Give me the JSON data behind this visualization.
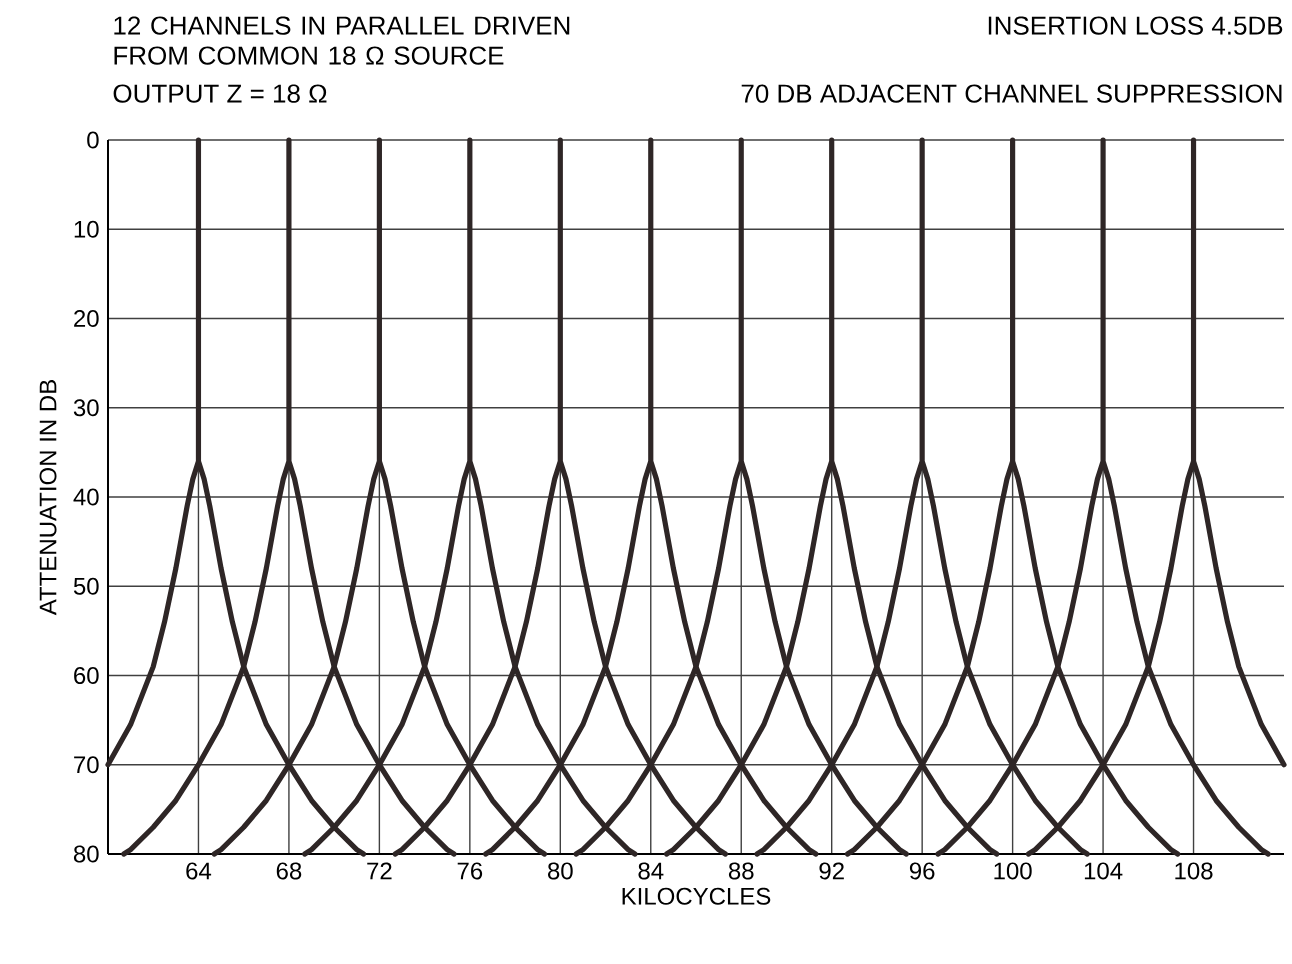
{
  "chart_data": {
    "type": "line",
    "title": "12 CHANNELS IN PARALLEL DRIVEN FROM COMMON 18 Ω SOURCE",
    "annotations": [
      "OUTPUT Z = 18 Ω",
      "INSERTION LOSS 4.5DB",
      "70 DB ADJACENT CHANNEL SUPPRESSION"
    ],
    "xlabel": "KILOCYCLES",
    "ylabel": "ATTENUATION IN DB",
    "xlim": [
      60,
      112
    ],
    "ylim": [
      80,
      0
    ],
    "xticks": [
      64,
      68,
      72,
      76,
      80,
      84,
      88,
      92,
      96,
      100,
      104,
      108
    ],
    "yticks": [
      0,
      10,
      20,
      30,
      40,
      50,
      60,
      70,
      80
    ],
    "grid": true,
    "marker": "none",
    "line_style": "solid",
    "series": [
      {
        "color": "#2e2626",
        "x": [
          60,
          61,
          62,
          62.5,
          63,
          63.5,
          63.75,
          64,
          64,
          64,
          64.25,
          64.5,
          65,
          65.5,
          66,
          67,
          68,
          69,
          70,
          71,
          71.3
        ],
        "values": [
          70,
          65.5,
          59,
          54,
          48,
          41,
          38,
          36,
          0,
          36,
          38,
          41,
          48,
          54,
          59,
          65.5,
          70,
          74,
          77,
          79.5,
          80
        ]
      },
      {
        "color": "#2e2626",
        "x": [
          60.7,
          61,
          62,
          63,
          64,
          65,
          66,
          66.5,
          67,
          67.5,
          67.75,
          68,
          68,
          68,
          68.25,
          68.5,
          69,
          69.5,
          70,
          71,
          72,
          73,
          74,
          75,
          75.3
        ],
        "values": [
          80,
          79.5,
          77,
          74,
          70,
          65.5,
          59,
          54,
          48,
          41,
          38,
          36,
          0,
          36,
          38,
          41,
          48,
          54,
          59,
          65.5,
          70,
          74,
          77,
          79.5,
          80
        ]
      },
      {
        "color": "#2e2626",
        "x": [
          64.7,
          65,
          66,
          67,
          68,
          69,
          70,
          70.5,
          71,
          71.5,
          71.75,
          72,
          72,
          72,
          72.25,
          72.5,
          73,
          73.5,
          74,
          75,
          76,
          77,
          78,
          79,
          79.3
        ],
        "values": [
          80,
          79.5,
          77,
          74,
          70,
          65.5,
          59,
          54,
          48,
          41,
          38,
          36,
          0,
          36,
          38,
          41,
          48,
          54,
          59,
          65.5,
          70,
          74,
          77,
          79.5,
          80
        ]
      },
      {
        "color": "#2e2626",
        "x": [
          68.7,
          69,
          70,
          71,
          72,
          73,
          74,
          74.5,
          75,
          75.5,
          75.75,
          76,
          76,
          76,
          76.25,
          76.5,
          77,
          77.5,
          78,
          79,
          80,
          81,
          82,
          83,
          83.3
        ],
        "values": [
          80,
          79.5,
          77,
          74,
          70,
          65.5,
          59,
          54,
          48,
          41,
          38,
          36,
          0,
          36,
          38,
          41,
          48,
          54,
          59,
          65.5,
          70,
          74,
          77,
          79.5,
          80
        ]
      },
      {
        "color": "#2e2626",
        "x": [
          72.7,
          73,
          74,
          75,
          76,
          77,
          78,
          78.5,
          79,
          79.5,
          79.75,
          80,
          80,
          80,
          80.25,
          80.5,
          81,
          81.5,
          82,
          83,
          84,
          85,
          86,
          87,
          87.3
        ],
        "values": [
          80,
          79.5,
          77,
          74,
          70,
          65.5,
          59,
          54,
          48,
          41,
          38,
          36,
          0,
          36,
          38,
          41,
          48,
          54,
          59,
          65.5,
          70,
          74,
          77,
          79.5,
          80
        ]
      },
      {
        "color": "#2e2626",
        "x": [
          76.7,
          77,
          78,
          79,
          80,
          81,
          82,
          82.5,
          83,
          83.5,
          83.75,
          84,
          84,
          84,
          84.25,
          84.5,
          85,
          85.5,
          86,
          87,
          88,
          89,
          90,
          91,
          91.3
        ],
        "values": [
          80,
          79.5,
          77,
          74,
          70,
          65.5,
          59,
          54,
          48,
          41,
          38,
          36,
          0,
          36,
          38,
          41,
          48,
          54,
          59,
          65.5,
          70,
          74,
          77,
          79.5,
          80
        ]
      },
      {
        "color": "#2e2626",
        "x": [
          80.7,
          81,
          82,
          83,
          84,
          85,
          86,
          86.5,
          87,
          87.5,
          87.75,
          88,
          88,
          88,
          88.25,
          88.5,
          89,
          89.5,
          90,
          91,
          92,
          93,
          94,
          95,
          95.3
        ],
        "values": [
          80,
          79.5,
          77,
          74,
          70,
          65.5,
          59,
          54,
          48,
          41,
          38,
          36,
          0,
          36,
          38,
          41,
          48,
          54,
          59,
          65.5,
          70,
          74,
          77,
          79.5,
          80
        ]
      },
      {
        "color": "#2e2626",
        "x": [
          84.7,
          85,
          86,
          87,
          88,
          89,
          90,
          90.5,
          91,
          91.5,
          91.75,
          92,
          92,
          92,
          92.25,
          92.5,
          93,
          93.5,
          94,
          95,
          96,
          97,
          98,
          99,
          99.3
        ],
        "values": [
          80,
          79.5,
          77,
          74,
          70,
          65.5,
          59,
          54,
          48,
          41,
          38,
          36,
          0,
          36,
          38,
          41,
          48,
          54,
          59,
          65.5,
          70,
          74,
          77,
          79.5,
          80
        ]
      },
      {
        "color": "#2e2626",
        "x": [
          88.7,
          89,
          90,
          91,
          92,
          93,
          94,
          94.5,
          95,
          95.5,
          95.75,
          96,
          96,
          96,
          96.25,
          96.5,
          97,
          97.5,
          98,
          99,
          100,
          101,
          102,
          103,
          103.3
        ],
        "values": [
          80,
          79.5,
          77,
          74,
          70,
          65.5,
          59,
          54,
          48,
          41,
          38,
          36,
          0,
          36,
          38,
          41,
          48,
          54,
          59,
          65.5,
          70,
          74,
          77,
          79.5,
          80
        ]
      },
      {
        "color": "#2e2626",
        "x": [
          92.7,
          93,
          94,
          95,
          96,
          97,
          98,
          98.5,
          99,
          99.5,
          99.75,
          100,
          100,
          100,
          100.25,
          100.5,
          101,
          101.5,
          102,
          103,
          104,
          105,
          106,
          107,
          107.3
        ],
        "values": [
          80,
          79.5,
          77,
          74,
          70,
          65.5,
          59,
          54,
          48,
          41,
          38,
          36,
          0,
          36,
          38,
          41,
          48,
          54,
          59,
          65.5,
          70,
          74,
          77,
          79.5,
          80
        ]
      },
      {
        "color": "#2e2626",
        "x": [
          96.7,
          97,
          98,
          99,
          100,
          101,
          102,
          102.5,
          103,
          103.5,
          103.75,
          104,
          104,
          104,
          104.25,
          104.5,
          105,
          105.5,
          106,
          107,
          108,
          109,
          110,
          111,
          111.3
        ],
        "values": [
          80,
          79.5,
          77,
          74,
          70,
          65.5,
          59,
          54,
          48,
          41,
          38,
          36,
          0,
          36,
          38,
          41,
          48,
          54,
          59,
          65.5,
          70,
          74,
          77,
          79.5,
          80
        ]
      },
      {
        "color": "#2e2626",
        "x": [
          100.7,
          101,
          102,
          103,
          104,
          105,
          106,
          106.5,
          107,
          107.5,
          107.75,
          108,
          108,
          108,
          108.25,
          108.5,
          109,
          109.5,
          110,
          111,
          112
        ],
        "values": [
          80,
          79.5,
          77,
          74,
          70,
          65.5,
          59,
          54,
          48,
          41,
          38,
          36,
          0,
          36,
          38,
          41,
          48,
          54,
          59,
          65.5,
          70
        ]
      }
    ]
  }
}
